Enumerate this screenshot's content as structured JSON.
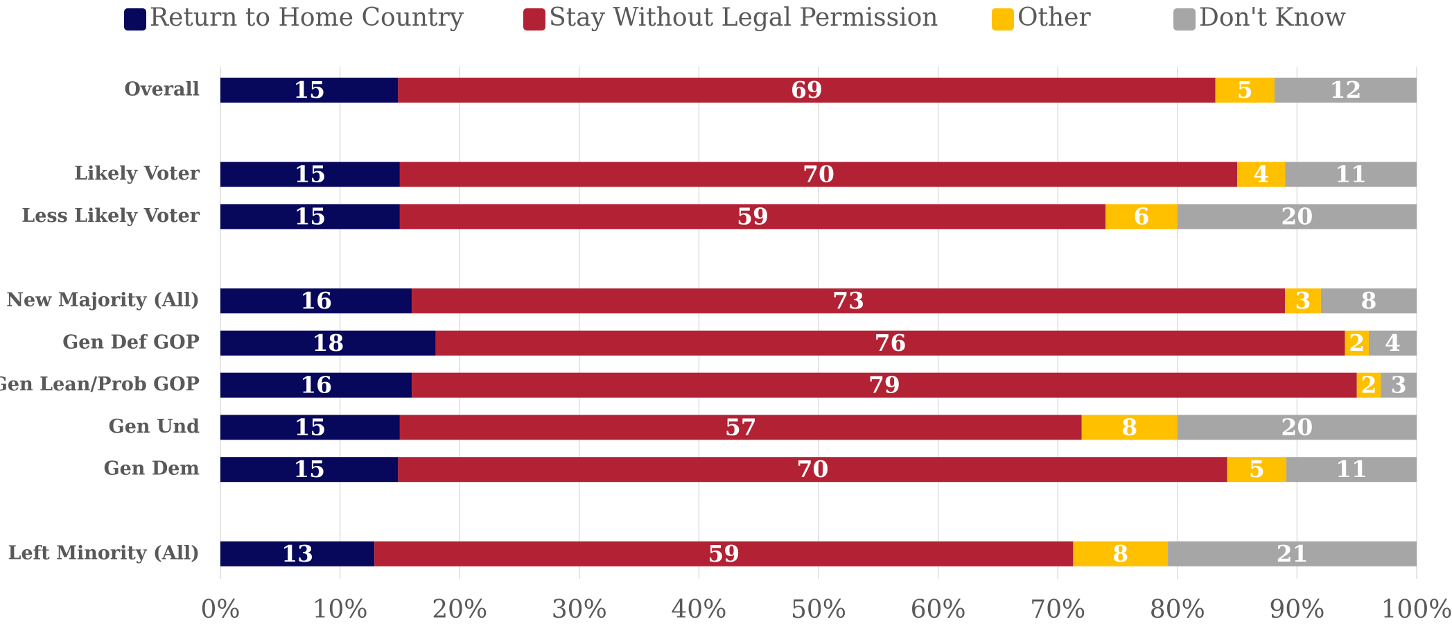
{
  "chart_data": {
    "type": "bar",
    "orientation": "horizontal",
    "stacking": "percent",
    "categories": [
      "Overall",
      null,
      "Likely Voter",
      "Less Likely Voter",
      null,
      "New Majority (All)",
      "Gen Def GOP",
      "Gen Lean/Prob GOP",
      "Gen Und",
      "Gen Dem",
      null,
      "Left Minority (All)"
    ],
    "series": [
      {
        "name": "Return to Home Country",
        "color": "#07075c",
        "values": [
          15,
          null,
          15,
          15,
          null,
          16,
          18,
          16,
          15,
          15,
          null,
          13
        ]
      },
      {
        "name": "Stay Without Legal Permission",
        "color": "#b22234",
        "values": [
          69,
          null,
          70,
          59,
          null,
          73,
          76,
          79,
          57,
          70,
          null,
          59
        ]
      },
      {
        "name": "Other",
        "color": "#ffc000",
        "values": [
          5,
          null,
          4,
          6,
          null,
          3,
          2,
          2,
          8,
          5,
          null,
          8
        ]
      },
      {
        "name": "Don't Know",
        "color": "#a6a6a6",
        "values": [
          12,
          null,
          11,
          20,
          null,
          8,
          4,
          3,
          20,
          11,
          null,
          21
        ]
      }
    ],
    "xlim": [
      0,
      100
    ],
    "xticks": [
      {
        "value": 0,
        "label": "0%"
      },
      {
        "value": 10,
        "label": "10%"
      },
      {
        "value": 20,
        "label": "20%"
      },
      {
        "value": 30,
        "label": "30%"
      },
      {
        "value": 40,
        "label": "40%"
      },
      {
        "value": 50,
        "label": "50%"
      },
      {
        "value": 60,
        "label": "60%"
      },
      {
        "value": 70,
        "label": "70%"
      },
      {
        "value": 80,
        "label": "80%"
      },
      {
        "value": 90,
        "label": "90%"
      },
      {
        "value": 100,
        "label": "100%"
      }
    ],
    "grid": true,
    "legend": "top"
  }
}
